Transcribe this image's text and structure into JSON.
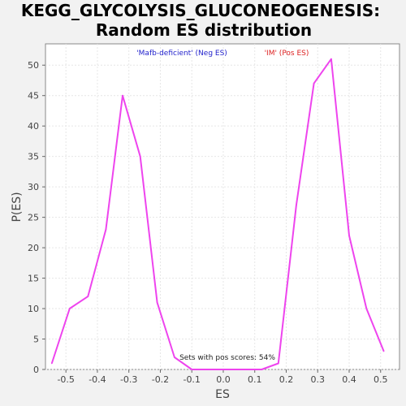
{
  "chart_data": {
    "type": "line",
    "title_line1": "KEGG_GLYCOLYSIS_GLUCONEOGENESIS:",
    "title_line2": "Random ES distribution",
    "xlabel": "ES",
    "ylabel": "P(ES)",
    "xlim": [
      -0.565,
      0.56
    ],
    "ylim": [
      0,
      53.5
    ],
    "x_ticks": [
      -0.5,
      -0.4,
      -0.3,
      -0.2,
      -0.1,
      0.0,
      0.1,
      0.2,
      0.3,
      0.4,
      0.5
    ],
    "x_tick_labels": [
      "-0.5",
      "-0.4",
      "-0.3",
      "-0.2",
      "-0.1",
      "0.0",
      "0.1",
      "0.2",
      "0.3",
      "0.4",
      "0.5"
    ],
    "y_ticks": [
      0,
      5,
      10,
      15,
      20,
      25,
      30,
      35,
      40,
      45,
      50
    ],
    "y_tick_labels": [
      "0",
      "5",
      "10",
      "15",
      "20",
      "25",
      "30",
      "35",
      "40",
      "45",
      "50"
    ],
    "grid": true,
    "legend": {
      "neg_label": "'Mafb-deficient' (Neg ES)",
      "neg_color": "#2222cc",
      "pos_label": "'IM' (Pos ES)",
      "pos_color": "#dd2222"
    },
    "annotation": "Sets with pos scores: 54%",
    "series": [
      {
        "color": "#ee44ee",
        "x": [
          -0.545,
          -0.488,
          -0.43,
          -0.373,
          -0.32,
          -0.264,
          -0.21,
          -0.155,
          -0.1,
          -0.045,
          0.012,
          0.067,
          0.122,
          0.175,
          0.232,
          0.288,
          0.343,
          0.4,
          0.455,
          0.51
        ],
        "y": [
          1,
          10,
          12,
          23,
          45,
          35,
          11,
          2,
          0,
          0,
          0,
          0,
          0,
          1,
          27,
          47,
          51,
          22,
          10,
          3
        ]
      }
    ]
  }
}
